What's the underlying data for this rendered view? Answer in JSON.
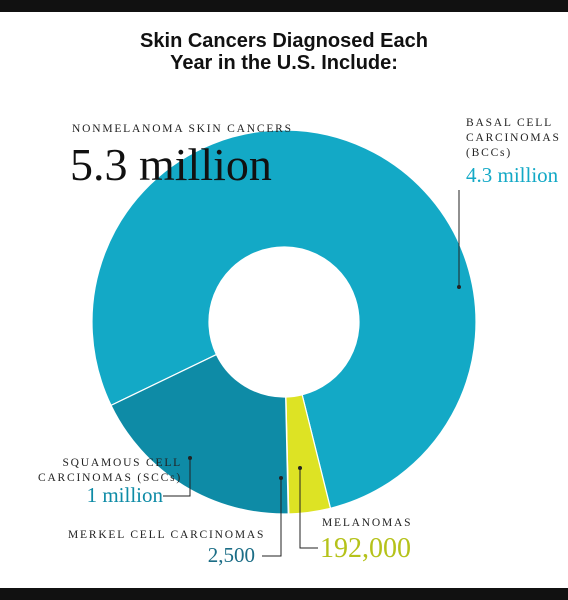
{
  "chart_data": {
    "type": "donut",
    "title": "Skin Cancers Diagnosed Each Year in the U.S. Include:",
    "annotation": {
      "label": "NONMELANOMA SKIN CANCERS",
      "value_label": "5.3 million"
    },
    "categories": [
      "BASAL CELL CARCINOMAS (BCCs)",
      "MELANOMAS",
      "MERKEL CELL CARCINOMAS",
      "SQUAMOUS CELL CARCINOMAS (SCCs)"
    ],
    "values": [
      4300000,
      192000,
      2500,
      1000000
    ],
    "value_labels": [
      "4.3 million",
      "192,000",
      "2,500",
      "1 million"
    ],
    "colors": [
      "#13a9c6",
      "#dde324",
      "#0e8ba6",
      "#0e8ba6"
    ],
    "label_colors": [
      "#13a9c6",
      "#b5c21a",
      "#1b6d86",
      "#0e8ba6"
    ]
  }
}
